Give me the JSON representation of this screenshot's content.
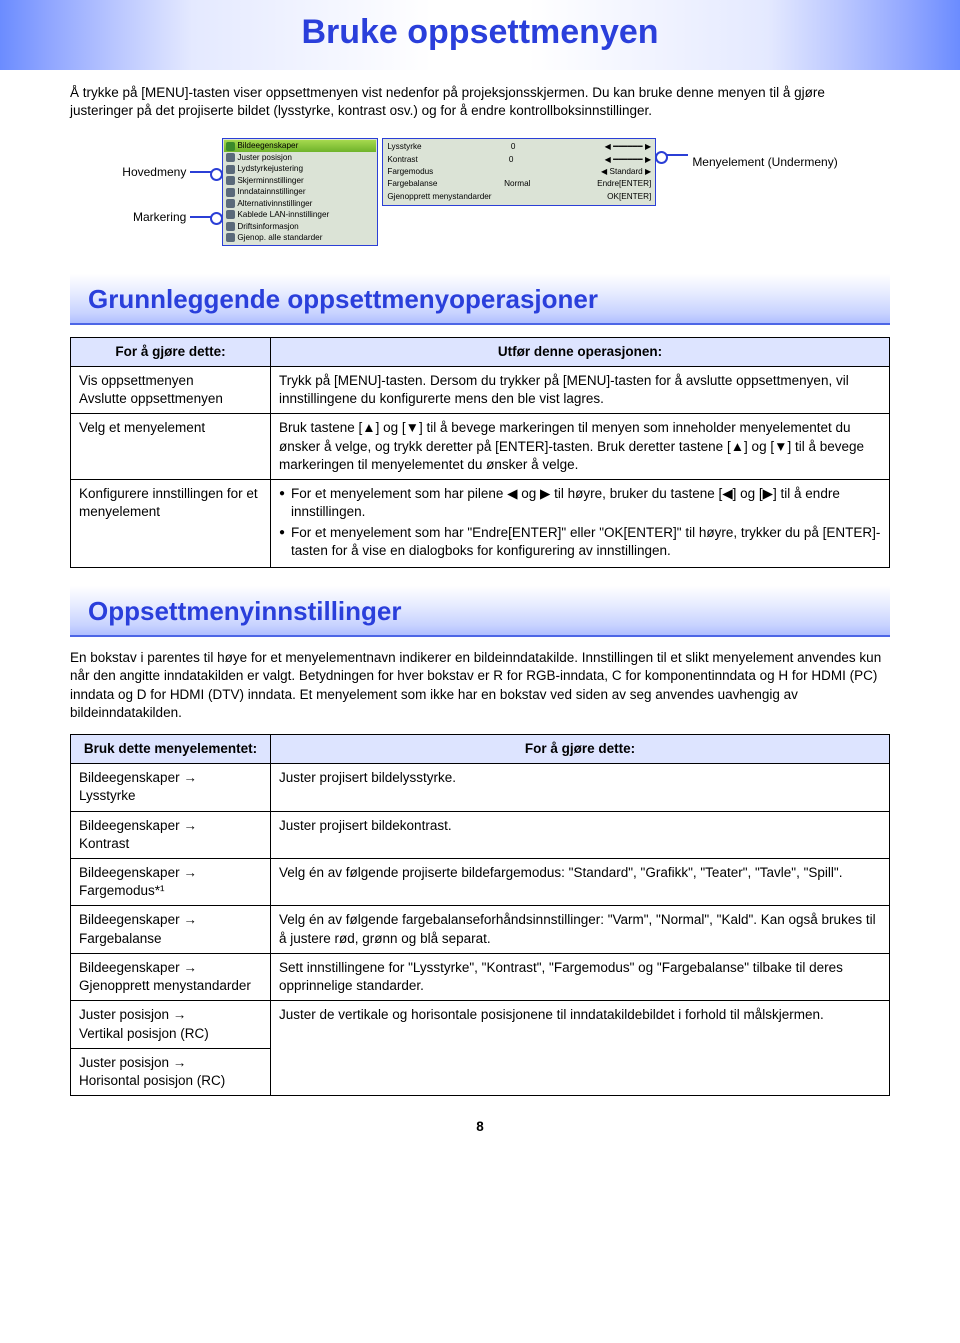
{
  "title": "Bruke oppsettmenyen",
  "intro": "Å trykke på [MENU]-tasten viser oppsettmenyen vist nedenfor på projeksjonsskjermen. Du kan bruke denne menyen til å gjøre justeringer på det projiserte bildet (lysstyrke, kontrast osv.) og for å endre kontrollboksinnstillinger.",
  "diagram": {
    "left_labels": [
      "Hovedmeny",
      "Markering"
    ],
    "right_label": "Menyelement (Undermeny)",
    "left_items": [
      "Bildeegenskaper",
      "Juster posisjon",
      "Lydstyrkejustering",
      "Skjerminnstillinger",
      "Inndatainnstillinger",
      "Alternativinnstillinger",
      "Kablede LAN-innstillinger",
      "Driftsinformasjon",
      "Gjenop. alle standarder"
    ],
    "right_rows": [
      {
        "l": "Lysstyrke",
        "m": "0",
        "r": "◀ ━━━━━━ ▶"
      },
      {
        "l": "Kontrast",
        "m": "0",
        "r": "◀ ━━━━━━ ▶"
      },
      {
        "l": "Fargemodus",
        "m": "",
        "r": "◀  Standard  ▶"
      },
      {
        "l": "Fargebalanse",
        "m": "Normal",
        "r": "Endre[ENTER]"
      },
      {
        "l": "Gjenopprett menystandarder",
        "m": "",
        "r": "OK[ENTER]"
      }
    ]
  },
  "section1_title": "Grunnleggende oppsettmenyoperasjoner",
  "table1": {
    "head": [
      "For å gjøre dette:",
      "Utfør denne operasjonen:"
    ],
    "rows": [
      {
        "l": "Vis oppsettmenyen\nAvslutte oppsettmenyen",
        "r": "Trykk på [MENU]-tasten. Dersom du trykker på [MENU]-tasten for å avslutte oppsettmenyen, vil innstillingene du konfigurerte mens den ble vist lagres."
      },
      {
        "l": "Velg et menyelement",
        "r": "Bruk tastene [▲] og [▼] til å bevege markeringen til menyen som inneholder menyelementet du ønsker å velge, og trykk deretter på [ENTER]-tasten. Bruk deretter tastene [▲] og [▼] til å bevege markeringen til menyelementet du ønsker å velge."
      },
      {
        "l": "Konfigurere innstillingen for et menyelement",
        "bullets": [
          "For et menyelement som har pilene ◀ og ▶ til høyre, bruker du tastene [◀] og [▶] til å endre innstillingen.",
          "For et menyelement som har \"Endre[ENTER]\" eller \"OK[ENTER]\" til høyre, trykker du på [ENTER]-tasten for å vise en dialogboks for konfigurering av innstillingen."
        ]
      }
    ]
  },
  "section2_title": "Oppsettmenyinnstillinger",
  "section2_desc": "En bokstav i parentes til høye for et menyelementnavn indikerer en bildeinndatakilde. Innstillingen til et slikt menyelement anvendes kun når den angitte inndatakilden er valgt. Betydningen for hver bokstav er R for RGB-inndata, C for komponentinndata og H for HDMI (PC) inndata og D for HDMI (DTV) inndata. Et menyelement som ikke har en bokstav ved siden av seg anvendes uavhengig av bildeinndatakilden.",
  "table2": {
    "head": [
      "Bruk dette menyelementet:",
      "For å gjøre dette:"
    ],
    "rows": [
      {
        "l": "Bildeegenskaper → Lysstyrke",
        "r": "Juster projisert bildelysstyrke."
      },
      {
        "l": "Bildeegenskaper → Kontrast",
        "r": "Juster projisert bildekontrast."
      },
      {
        "l": "Bildeegenskaper → Fargemodus*¹",
        "r": "Velg én av følgende projiserte bildefargemodus: \"Standard\", \"Grafikk\", \"Teater\", \"Tavle\", \"Spill\"."
      },
      {
        "l": "Bildeegenskaper → Fargebalanse",
        "r": "Velg én av følgende fargebalanseforhåndsinnstillinger: \"Varm\", \"Normal\", \"Kald\". Kan også brukes til å justere rød, grønn og blå separat."
      },
      {
        "l": "Bildeegenskaper → Gjenopprett menystandarder",
        "r": "Sett innstillingene for \"Lysstyrke\", \"Kontrast\", \"Fargemodus\" og \"Fargebalanse\" tilbake til deres opprinnelige standarder."
      },
      {
        "l": "Juster posisjon → Vertikal posisjon (RC)",
        "r": "Juster de vertikale og horisontale posisjonene til inndatakildebildet i forhold til målskjermen."
      },
      {
        "l": "Juster posisjon → Horisontal posisjon (RC)",
        "r": ""
      }
    ]
  },
  "page_number": "8"
}
